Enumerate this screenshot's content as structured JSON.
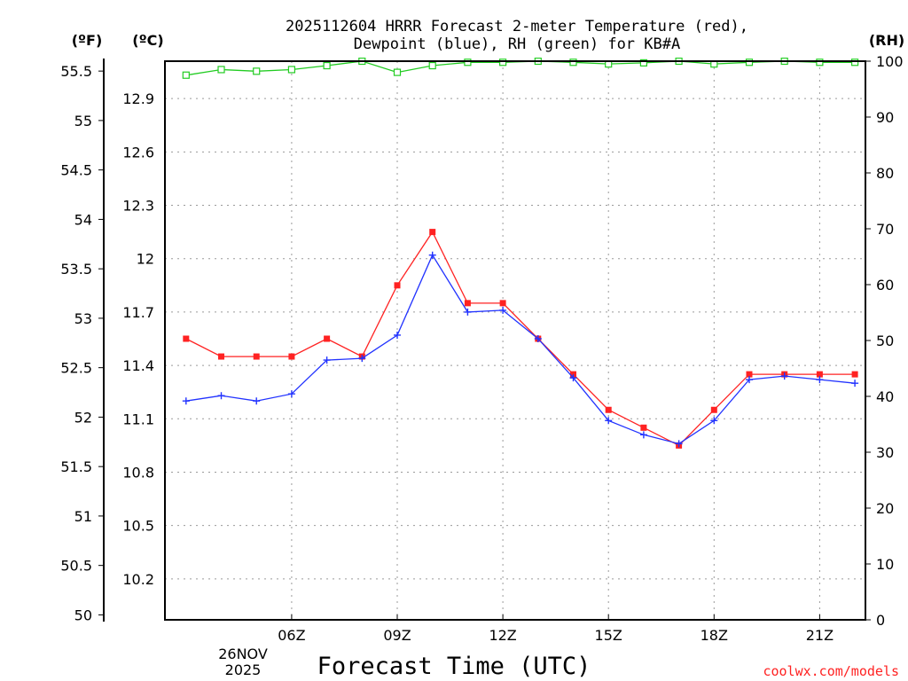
{
  "chart_data": {
    "type": "line",
    "title_line1": "2025112604 HRRR Forecast 2-meter Temperature (red),",
    "title_line2": "Dewpoint (blue), RH (green) for KB#A",
    "xlabel": "Forecast Time (UTC)",
    "credit": "coolwx.com/models",
    "x_hours": [
      3,
      4,
      5,
      6,
      7,
      8,
      9,
      10,
      11,
      12,
      13,
      14,
      15,
      16,
      17,
      18,
      19,
      20,
      21,
      22
    ],
    "x_tick_hours": [
      6,
      9,
      12,
      15,
      18,
      21
    ],
    "x_tick_labels": [
      "06Z",
      "09Z",
      "12Z",
      "15Z",
      "18Z",
      "21Z"
    ],
    "date_line1": "26NOV",
    "date_line2": "2025",
    "axes": {
      "fahrenheit": {
        "unit_label": "(ºF)",
        "range": [
          49.95,
          55.6
        ],
        "ticks": [
          "50",
          "50.5",
          "51",
          "51.5",
          "52",
          "52.5",
          "53",
          "53.5",
          "54",
          "54.5",
          "55",
          "55.5"
        ]
      },
      "celsius": {
        "unit_label": "(ºC)",
        "range": [
          9.97,
          13.11
        ],
        "ticks": [
          "10.2",
          "10.5",
          "10.8",
          "11.1",
          "11.4",
          "11.7",
          "12",
          "12.3",
          "12.6",
          "12.9"
        ]
      },
      "rh": {
        "unit_label": "(RH)",
        "range": [
          0,
          100
        ],
        "ticks": [
          "0",
          "10",
          "20",
          "30",
          "40",
          "50",
          "60",
          "70",
          "80",
          "90",
          "100"
        ]
      }
    },
    "series": [
      {
        "name": "2-meter Temperature",
        "unit": "degC",
        "color": "#ff2222",
        "marker": "filled-square",
        "values": [
          11.55,
          11.45,
          11.45,
          11.45,
          11.55,
          11.45,
          11.85,
          12.15,
          11.75,
          11.75,
          11.55,
          11.35,
          11.15,
          11.05,
          10.95,
          11.15,
          11.35,
          11.35,
          11.35,
          11.35
        ]
      },
      {
        "name": "Dewpoint",
        "unit": "degC",
        "color": "#2233ff",
        "marker": "plus",
        "values": [
          11.2,
          11.23,
          11.2,
          11.24,
          11.43,
          11.44,
          11.57,
          12.02,
          11.7,
          11.71,
          11.55,
          11.33,
          11.09,
          11.01,
          10.96,
          11.09,
          11.32,
          11.34,
          11.32,
          11.3
        ]
      },
      {
        "name": "RH",
        "unit": "percent",
        "color": "#22cc22",
        "marker": "open-square",
        "values": [
          97.5,
          98.5,
          98.2,
          98.5,
          99.2,
          100,
          98,
          99.2,
          99.8,
          99.8,
          100,
          99.8,
          99.5,
          99.7,
          100,
          99.5,
          99.8,
          100,
          99.8,
          99.8
        ]
      }
    ]
  }
}
